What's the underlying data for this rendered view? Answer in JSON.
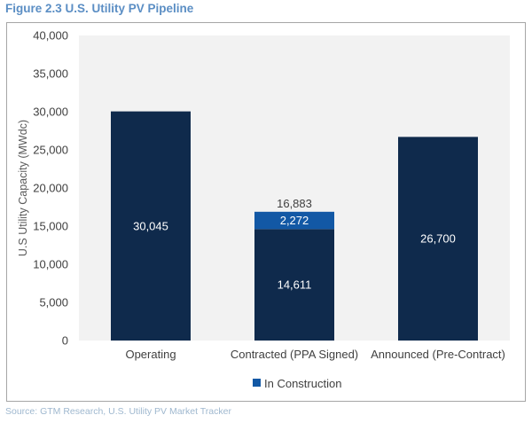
{
  "figure": {
    "title": "Figure 2.3 U.S. Utility PV Pipeline",
    "source": "Source:  GTM Research, U.S. Utility PV Market Tracker"
  },
  "colors": {
    "base": "#0f2a4c",
    "in_construction": "#1258a5",
    "plot_background": "#f2f2f2",
    "title": "#5b8ec4"
  },
  "chart_data": {
    "type": "bar",
    "stacked": true,
    "title": "Figure 2.3 U.S. Utility PV Pipeline",
    "xlabel": "",
    "ylabel": "U.S Utility Capacity (MWdc)",
    "ylim": [
      0,
      40000
    ],
    "yticks": [
      0,
      5000,
      10000,
      15000,
      20000,
      25000,
      30000,
      35000,
      40000
    ],
    "ytick_labels": [
      "0",
      "5,000",
      "10,000",
      "15,000",
      "20,000",
      "25,000",
      "30,000",
      "35,000",
      "40,000"
    ],
    "categories": [
      "Operating",
      "Contracted (PPA Signed)",
      "Announced (Pre-Contract)"
    ],
    "series": [
      {
        "name": "Base",
        "values": [
          30045,
          14611,
          26700
        ],
        "labels": [
          "30,045",
          "14,611",
          "26,700"
        ],
        "in_legend": false
      },
      {
        "name": "In Construction",
        "values": [
          0,
          2272,
          0
        ],
        "labels": [
          "",
          "2,272",
          ""
        ],
        "in_legend": true
      }
    ],
    "totals": [
      {
        "category": "Contracted (PPA Signed)",
        "value": 16883,
        "label": "16,883"
      }
    ],
    "grid": false,
    "legend": {
      "position": "bottom",
      "entries": [
        "In Construction"
      ]
    }
  }
}
